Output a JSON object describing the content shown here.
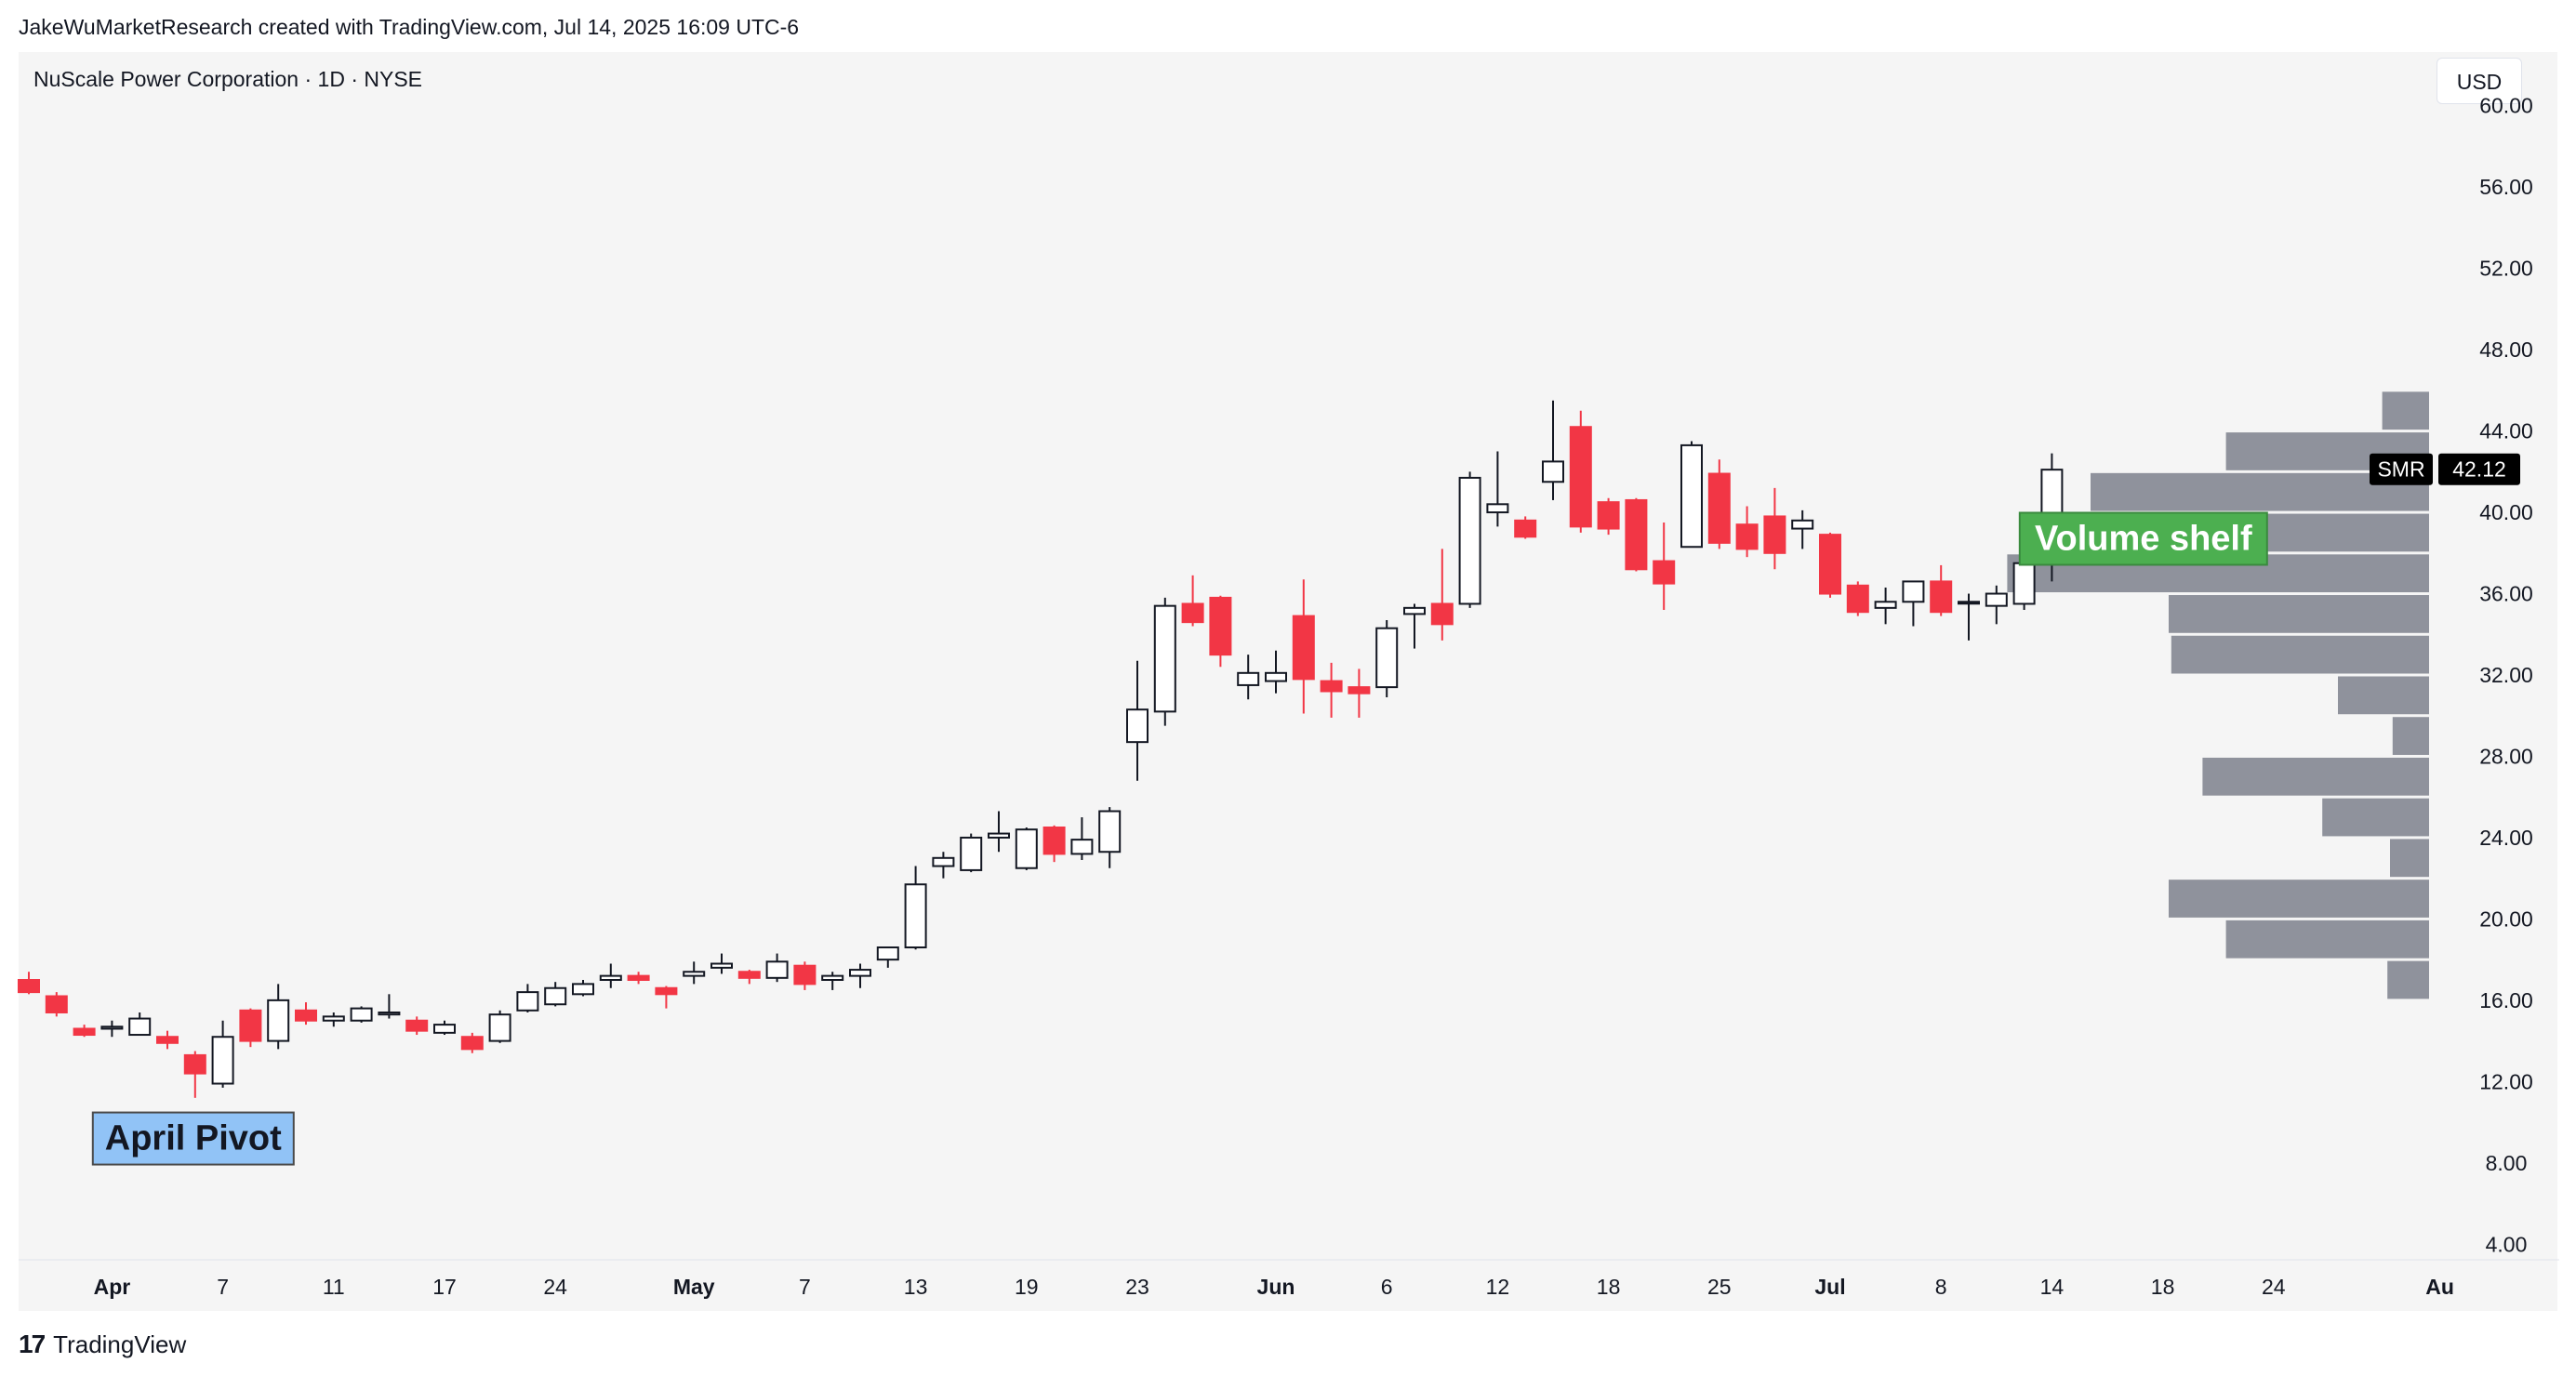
{
  "header": {
    "credit": "JakeWuMarketResearch created with TradingView.com, Jul 14, 2025 16:09 UTC-6",
    "symbol_title": "NuScale Power Corporation · 1D · NYSE",
    "currency": "USD"
  },
  "footer": {
    "brand": "TradingView",
    "logo": "17"
  },
  "colors": {
    "up": "#ffffff",
    "down": "#f23645",
    "outline": "#131722",
    "volume": "#8f929c",
    "pivot_bg": "#91c3f6",
    "shelf_bg": "#4caf50",
    "price_label_bg": "#000000"
  },
  "chart_data": {
    "type": "candlestick",
    "title": "NuScale Power Corporation · 1D · NYSE",
    "ylim": [
      2,
      62
    ],
    "y_ticks": [
      "60.00",
      "56.00",
      "52.00",
      "48.00",
      "44.00",
      "40.00",
      "36.00",
      "32.00",
      "28.00",
      "24.00",
      "20.00",
      "16.00",
      "12.00",
      "8.00",
      "4.00"
    ],
    "y_tick_values": [
      60,
      56,
      52,
      48,
      44,
      40,
      36,
      32,
      28,
      24,
      20,
      16,
      12,
      8,
      4
    ],
    "x_ticks": [
      {
        "label": "Apr",
        "index": 3,
        "bold": true
      },
      {
        "label": "7",
        "index": 7,
        "bold": false
      },
      {
        "label": "11",
        "index": 11,
        "bold": false
      },
      {
        "label": "17",
        "index": 15,
        "bold": false
      },
      {
        "label": "24",
        "index": 19,
        "bold": false
      },
      {
        "label": "May",
        "index": 24,
        "bold": true
      },
      {
        "label": "7",
        "index": 28,
        "bold": false
      },
      {
        "label": "13",
        "index": 32,
        "bold": false
      },
      {
        "label": "19",
        "index": 36,
        "bold": false
      },
      {
        "label": "23",
        "index": 40,
        "bold": false
      },
      {
        "label": "Jun",
        "index": 45,
        "bold": true
      },
      {
        "label": "6",
        "index": 49,
        "bold": false
      },
      {
        "label": "12",
        "index": 53,
        "bold": false
      },
      {
        "label": "18",
        "index": 57,
        "bold": false
      },
      {
        "label": "25",
        "index": 61,
        "bold": false
      },
      {
        "label": "Jul",
        "index": 65,
        "bold": true
      },
      {
        "label": "8",
        "index": 69,
        "bold": false
      },
      {
        "label": "14",
        "index": 73,
        "bold": false
      },
      {
        "label": "18",
        "index": 77,
        "bold": false
      },
      {
        "label": "24",
        "index": 81,
        "bold": false
      },
      {
        "label": "Au",
        "index": 87,
        "bold": true
      }
    ],
    "candles": [
      {
        "o": 17.0,
        "h": 17.4,
        "l": 16.3,
        "c": 16.4
      },
      {
        "o": 16.2,
        "h": 16.4,
        "l": 15.2,
        "c": 15.4
      },
      {
        "o": 14.6,
        "h": 14.8,
        "l": 14.2,
        "c": 14.3
      },
      {
        "o": 14.6,
        "h": 15.0,
        "l": 14.2,
        "c": 14.7
      },
      {
        "o": 14.3,
        "h": 15.4,
        "l": 14.3,
        "c": 15.1
      },
      {
        "o": 14.2,
        "h": 14.5,
        "l": 13.6,
        "c": 13.9
      },
      {
        "o": 13.3,
        "h": 13.5,
        "l": 11.2,
        "c": 12.4
      },
      {
        "o": 11.9,
        "h": 15.0,
        "l": 11.7,
        "c": 14.2
      },
      {
        "o": 15.5,
        "h": 15.6,
        "l": 13.7,
        "c": 14.0
      },
      {
        "o": 14.0,
        "h": 16.8,
        "l": 13.6,
        "c": 16.0
      },
      {
        "o": 15.5,
        "h": 15.9,
        "l": 14.8,
        "c": 15.0
      },
      {
        "o": 15.0,
        "h": 15.4,
        "l": 14.7,
        "c": 15.2
      },
      {
        "o": 15.0,
        "h": 15.7,
        "l": 14.9,
        "c": 15.6
      },
      {
        "o": 15.3,
        "h": 16.3,
        "l": 15.1,
        "c": 15.4
      },
      {
        "o": 15.0,
        "h": 15.2,
        "l": 14.3,
        "c": 14.5
      },
      {
        "o": 14.4,
        "h": 15.0,
        "l": 14.3,
        "c": 14.8
      },
      {
        "o": 14.2,
        "h": 14.4,
        "l": 13.4,
        "c": 13.6
      },
      {
        "o": 14.0,
        "h": 15.5,
        "l": 13.9,
        "c": 15.3
      },
      {
        "o": 15.5,
        "h": 16.8,
        "l": 15.4,
        "c": 16.4
      },
      {
        "o": 15.8,
        "h": 16.9,
        "l": 15.7,
        "c": 16.6
      },
      {
        "o": 16.3,
        "h": 17.0,
        "l": 16.2,
        "c": 16.8
      },
      {
        "o": 17.0,
        "h": 17.8,
        "l": 16.6,
        "c": 17.2
      },
      {
        "o": 17.2,
        "h": 17.4,
        "l": 16.8,
        "c": 17.0
      },
      {
        "o": 16.6,
        "h": 16.7,
        "l": 15.6,
        "c": 16.3
      },
      {
        "o": 17.2,
        "h": 17.9,
        "l": 16.8,
        "c": 17.4
      },
      {
        "o": 17.6,
        "h": 18.3,
        "l": 17.3,
        "c": 17.8
      },
      {
        "o": 17.4,
        "h": 17.5,
        "l": 16.8,
        "c": 17.1
      },
      {
        "o": 17.1,
        "h": 18.3,
        "l": 16.9,
        "c": 17.9
      },
      {
        "o": 17.7,
        "h": 17.9,
        "l": 16.5,
        "c": 16.8
      },
      {
        "o": 17.0,
        "h": 17.4,
        "l": 16.5,
        "c": 17.2
      },
      {
        "o": 17.2,
        "h": 17.8,
        "l": 16.6,
        "c": 17.5
      },
      {
        "o": 18.0,
        "h": 18.4,
        "l": 17.6,
        "c": 18.6
      },
      {
        "o": 18.6,
        "h": 22.6,
        "l": 18.5,
        "c": 21.7
      },
      {
        "o": 22.6,
        "h": 23.3,
        "l": 22.0,
        "c": 23.0
      },
      {
        "o": 22.4,
        "h": 24.2,
        "l": 22.3,
        "c": 24.0
      },
      {
        "o": 24.0,
        "h": 25.3,
        "l": 23.3,
        "c": 24.2
      },
      {
        "o": 22.5,
        "h": 24.5,
        "l": 22.4,
        "c": 24.4
      },
      {
        "o": 24.5,
        "h": 24.6,
        "l": 22.8,
        "c": 23.2
      },
      {
        "o": 23.2,
        "h": 25.0,
        "l": 22.9,
        "c": 23.9
      },
      {
        "o": 23.3,
        "h": 25.5,
        "l": 22.5,
        "c": 25.3
      },
      {
        "o": 28.7,
        "h": 32.7,
        "l": 26.8,
        "c": 30.3
      },
      {
        "o": 30.2,
        "h": 35.8,
        "l": 29.5,
        "c": 35.4
      },
      {
        "o": 35.5,
        "h": 36.9,
        "l": 34.4,
        "c": 34.6
      },
      {
        "o": 35.8,
        "h": 35.9,
        "l": 32.4,
        "c": 33.0
      },
      {
        "o": 31.5,
        "h": 33.0,
        "l": 30.8,
        "c": 32.1
      },
      {
        "o": 31.7,
        "h": 33.2,
        "l": 31.1,
        "c": 32.1
      },
      {
        "o": 34.9,
        "h": 36.7,
        "l": 30.1,
        "c": 31.8
      },
      {
        "o": 31.7,
        "h": 32.6,
        "l": 29.9,
        "c": 31.2
      },
      {
        "o": 31.4,
        "h": 32.3,
        "l": 29.9,
        "c": 31.1
      },
      {
        "o": 31.4,
        "h": 34.7,
        "l": 30.9,
        "c": 34.3
      },
      {
        "o": 35.0,
        "h": 35.5,
        "l": 33.3,
        "c": 35.3
      },
      {
        "o": 35.5,
        "h": 38.2,
        "l": 33.7,
        "c": 34.5
      },
      {
        "o": 35.5,
        "h": 42.0,
        "l": 35.3,
        "c": 41.7
      },
      {
        "o": 40.0,
        "h": 43.0,
        "l": 39.3,
        "c": 40.4
      },
      {
        "o": 39.6,
        "h": 39.8,
        "l": 38.7,
        "c": 38.8
      },
      {
        "o": 41.5,
        "h": 45.5,
        "l": 40.6,
        "c": 42.5
      },
      {
        "o": 44.2,
        "h": 45.0,
        "l": 39.0,
        "c": 39.3
      },
      {
        "o": 40.5,
        "h": 40.7,
        "l": 38.9,
        "c": 39.2
      },
      {
        "o": 40.6,
        "h": 40.7,
        "l": 37.1,
        "c": 37.2
      },
      {
        "o": 37.6,
        "h": 39.5,
        "l": 35.2,
        "c": 36.5
      },
      {
        "o": 38.3,
        "h": 43.5,
        "l": 38.3,
        "c": 43.3
      },
      {
        "o": 41.9,
        "h": 42.6,
        "l": 38.2,
        "c": 38.5
      },
      {
        "o": 39.4,
        "h": 40.3,
        "l": 37.8,
        "c": 38.2
      },
      {
        "o": 39.8,
        "h": 41.2,
        "l": 37.2,
        "c": 38.0
      },
      {
        "o": 39.2,
        "h": 40.1,
        "l": 38.2,
        "c": 39.6
      },
      {
        "o": 38.9,
        "h": 39.0,
        "l": 35.8,
        "c": 36.0
      },
      {
        "o": 36.4,
        "h": 36.6,
        "l": 34.9,
        "c": 35.1
      },
      {
        "o": 35.3,
        "h": 36.3,
        "l": 34.5,
        "c": 35.6
      },
      {
        "o": 35.6,
        "h": 36.6,
        "l": 34.4,
        "c": 36.6
      },
      {
        "o": 36.6,
        "h": 37.4,
        "l": 34.9,
        "c": 35.1
      },
      {
        "o": 35.6,
        "h": 36.0,
        "l": 33.7,
        "c": 35.6
      },
      {
        "o": 35.4,
        "h": 36.4,
        "l": 34.5,
        "c": 36.0
      },
      {
        "o": 35.5,
        "h": 38.3,
        "l": 35.2,
        "c": 37.5
      },
      {
        "o": 37.5,
        "h": 42.9,
        "l": 36.6,
        "c": 42.1
      }
    ],
    "volume_profile": [
      {
        "from": 44,
        "to": 46,
        "size": 0.18
      },
      {
        "from": 42,
        "to": 44,
        "size": 0.78
      },
      {
        "from": 40,
        "to": 42,
        "size": 1.3
      },
      {
        "from": 38,
        "to": 40,
        "size": 0.92
      },
      {
        "from": 36,
        "to": 38,
        "size": 1.62
      },
      {
        "from": 34,
        "to": 36,
        "size": 1.0
      },
      {
        "from": 32,
        "to": 34,
        "size": 0.99
      },
      {
        "from": 30,
        "to": 32,
        "size": 0.35
      },
      {
        "from": 28,
        "to": 30,
        "size": 0.14
      },
      {
        "from": 26,
        "to": 28,
        "size": 0.87
      },
      {
        "from": 24,
        "to": 26,
        "size": 0.41
      },
      {
        "from": 22,
        "to": 24,
        "size": 0.15
      },
      {
        "from": 20,
        "to": 22,
        "size": 1.0
      },
      {
        "from": 18,
        "to": 20,
        "size": 0.78
      },
      {
        "from": 16,
        "to": 18,
        "size": 0.16
      }
    ],
    "last_price": {
      "symbol": "SMR",
      "value": "42.12",
      "price": 42.12
    },
    "annotations": [
      {
        "text": "April Pivot",
        "index": 6,
        "price": 9.2
      },
      {
        "text": "Volume shelf",
        "index": 76,
        "price": 38.7
      }
    ]
  }
}
